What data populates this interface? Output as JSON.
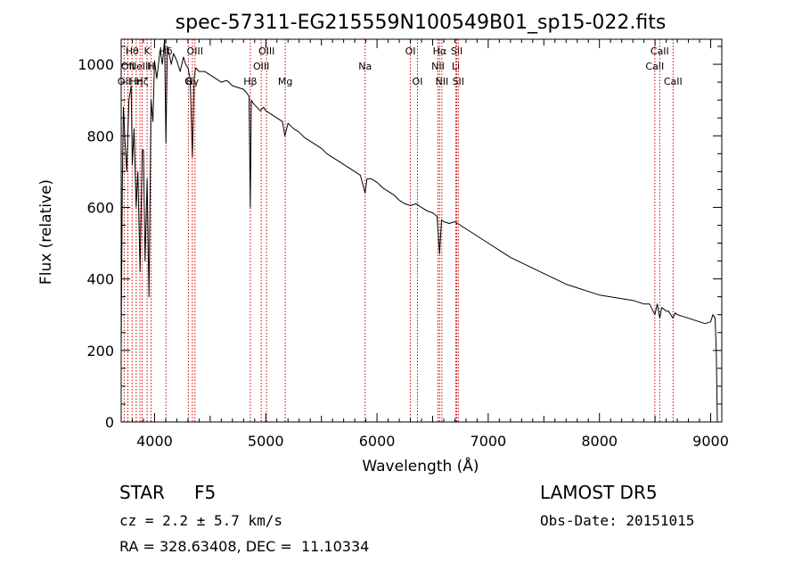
{
  "footer": {
    "class_label": "STAR",
    "subclass_label": "F5",
    "survey_label": "LAMOST DR5",
    "cz_text": "cz = 2.2 ± 5.7 km/s",
    "obs_date_text": "Obs-Date: 20151015",
    "radec_text": "RA = 328.63408, DEC =  11.10334"
  },
  "colors": {
    "spectrum": "#000000",
    "line_markers": "#cc0000",
    "axes": "#000000"
  },
  "chart_data": {
    "type": "line",
    "title": "spec-57311-EG215559N100549B01_sp15-022.fits",
    "xlabel": "Wavelength (Å)",
    "ylabel": "Flux (relative)",
    "xlim": [
      3700,
      9100
    ],
    "ylim": [
      0,
      1070
    ],
    "x_ticks": [
      4000,
      5000,
      6000,
      7000,
      8000,
      9000
    ],
    "y_ticks": [
      0,
      200,
      400,
      600,
      800,
      1000
    ],
    "grid": false,
    "legend": "none",
    "series": [
      {
        "x": [
          3700,
          3710,
          3720,
          3735,
          3750,
          3770,
          3790,
          3800,
          3815,
          3835,
          3850,
          3870,
          3889,
          3900,
          3915,
          3933,
          3950,
          3968,
          3985,
          4000,
          4020,
          4050,
          4070,
          4090,
          4102,
          4115,
          4130,
          4150,
          4170,
          4200,
          4230,
          4260,
          4280,
          4300,
          4320,
          4340,
          4355,
          4370,
          4400,
          4450,
          4500,
          4550,
          4600,
          4650,
          4700,
          4750,
          4800,
          4830,
          4850,
          4861,
          4870,
          4890,
          4920,
          4950,
          4980,
          5000,
          5050,
          5100,
          5150,
          5172,
          5200,
          5250,
          5300,
          5350,
          5400,
          5450,
          5500,
          5550,
          5600,
          5650,
          5700,
          5750,
          5800,
          5850,
          5893,
          5910,
          5950,
          6000,
          6050,
          6100,
          6150,
          6200,
          6250,
          6300,
          6350,
          6400,
          6450,
          6500,
          6540,
          6563,
          6580,
          6600,
          6650,
          6700,
          6750,
          6800,
          6900,
          7000,
          7100,
          7200,
          7300,
          7400,
          7500,
          7600,
          7700,
          7800,
          7900,
          8000,
          8100,
          8200,
          8300,
          8400,
          8450,
          8498,
          8520,
          8542,
          8560,
          8600,
          8620,
          8662,
          8680,
          8700,
          8750,
          8800,
          8850,
          8900,
          8950,
          9000,
          9020,
          9040,
          9050,
          9060
        ],
        "y": [
          200,
          650,
          880,
          780,
          700,
          900,
          940,
          720,
          820,
          600,
          700,
          420,
          760,
          760,
          450,
          680,
          350,
          900,
          840,
          1010,
          960,
          1040,
          1000,
          1070,
          780,
          1050,
          1030,
          1000,
          1030,
          1010,
          980,
          1020,
          1000,
          990,
          960,
          740,
          960,
          990,
          980,
          980,
          970,
          960,
          950,
          955,
          940,
          935,
          930,
          920,
          910,
          600,
          900,
          890,
          880,
          870,
          880,
          870,
          860,
          850,
          840,
          800,
          835,
          820,
          810,
          795,
          785,
          775,
          765,
          750,
          740,
          730,
          720,
          710,
          700,
          690,
          640,
          680,
          680,
          670,
          655,
          645,
          635,
          620,
          610,
          605,
          610,
          600,
          590,
          585,
          575,
          470,
          565,
          560,
          555,
          560,
          550,
          540,
          520,
          500,
          480,
          460,
          445,
          430,
          415,
          400,
          385,
          375,
          365,
          355,
          350,
          345,
          340,
          330,
          330,
          300,
          330,
          290,
          320,
          310,
          310,
          290,
          305,
          300,
          295,
          290,
          285,
          280,
          275,
          280,
          300,
          290,
          200,
          0
        ]
      }
    ],
    "line_markers": [
      {
        "x": 3727,
        "label": "OII",
        "row": 3
      },
      {
        "x": 3760,
        "label": "OII",
        "row": 2
      },
      {
        "x": 3798,
        "label": "Hθ",
        "row": 1
      },
      {
        "x": 3835,
        "label": "Hη",
        "row": 3
      },
      {
        "x": 3869,
        "label": "NeIII",
        "row": 2
      },
      {
        "x": 3889,
        "label": "Hζ",
        "row": 3
      },
      {
        "x": 3933,
        "label": "K",
        "row": 1
      },
      {
        "x": 3968,
        "label": "H",
        "row": 2
      },
      {
        "x": 4102,
        "label": "Hδ",
        "row": 1
      },
      {
        "x": 4304,
        "label": "G",
        "row": 3
      },
      {
        "x": 4340,
        "label": "Hγ",
        "row": 3
      },
      {
        "x": 4363,
        "label": "OIII",
        "row": 1
      },
      {
        "x": 4861,
        "label": "Hβ",
        "row": 3
      },
      {
        "x": 4959,
        "label": "OIII",
        "row": 2
      },
      {
        "x": 5007,
        "label": "OIII",
        "row": 1
      },
      {
        "x": 5175,
        "label": "Mg",
        "row": 3
      },
      {
        "x": 5893,
        "label": "Na",
        "row": 2
      },
      {
        "x": 6300,
        "label": "OI",
        "row": 1
      },
      {
        "x": 6364,
        "label": "OI",
        "row": 3
      },
      {
        "x": 6548,
        "label": "NII",
        "row": 2
      },
      {
        "x": 6563,
        "label": "Hα",
        "row": 1
      },
      {
        "x": 6583,
        "label": "NII",
        "row": 3
      },
      {
        "x": 6708,
        "label": "Li",
        "row": 2
      },
      {
        "x": 6717,
        "label": "SII",
        "row": 1
      },
      {
        "x": 6731,
        "label": "SII",
        "row": 3
      },
      {
        "x": 8498,
        "label": "CaII",
        "row": 2
      },
      {
        "x": 8542,
        "label": "CaII",
        "row": 1
      },
      {
        "x": 8662,
        "label": "CaII",
        "row": 3
      }
    ]
  }
}
